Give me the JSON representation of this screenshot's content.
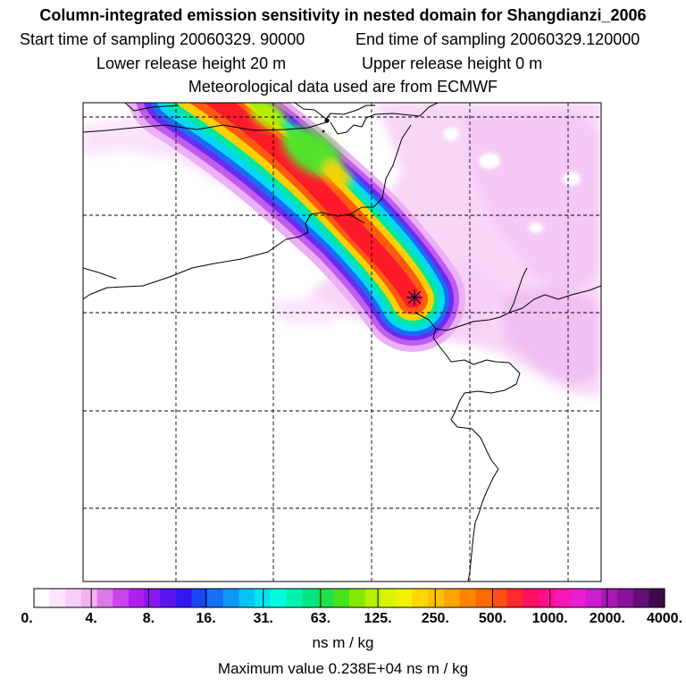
{
  "header": {
    "title": "Column-integrated emission sensitivity in nested domain for Shangdianzi_2006",
    "start_time": "Start time of sampling 20060329. 90000",
    "end_time": "End time of sampling 20060329.120000",
    "lower_height": "Lower release height   20 m",
    "upper_height": "Upper release height    0 m",
    "met_data": "Meteorological data used are from ECMWF"
  },
  "colorbar": {
    "ticks": [
      "0.",
      "4.",
      "8.",
      "16.",
      "31.",
      "63.",
      "125.",
      "250.",
      "500.",
      "1000.",
      "2000.",
      "4000."
    ],
    "colors": [
      "#ffffff",
      "#fde6fd",
      "#f9cbf9",
      "#f4b0f4",
      "#dd7ae9",
      "#cc44ee",
      "#b01ff0",
      "#8a16f0",
      "#5a14ee",
      "#2f19f0",
      "#1d46f3",
      "#1570f5",
      "#0d98f5",
      "#06c3f5",
      "#00e6f0",
      "#00fde0",
      "#00f2b0",
      "#00e680",
      "#1ee04a",
      "#45e21e",
      "#85e800",
      "#b8ee00",
      "#dbf400",
      "#f2f100",
      "#ffd800",
      "#ffc000",
      "#ffa300",
      "#ff8500",
      "#ff6a00",
      "#ff4e10",
      "#ff2a30",
      "#ff1060",
      "#ff0f8a",
      "#fa16b4",
      "#e81ed0",
      "#cc1cce",
      "#aa18b4",
      "#881398",
      "#640f74",
      "#3e0a4a"
    ],
    "units": "ns m / kg",
    "max_value": "Maximum value  0.238E+04 ns m / kg"
  },
  "map": {
    "receptor_marker": "star",
    "grid_style": "dashed"
  }
}
